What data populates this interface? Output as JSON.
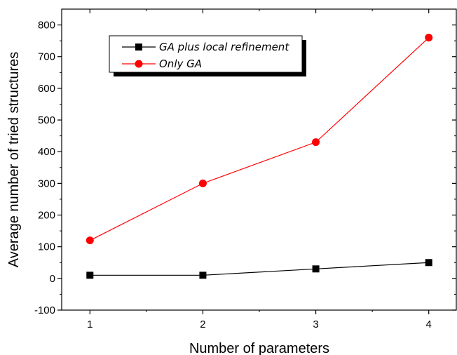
{
  "chart_data": {
    "type": "line",
    "title": "",
    "xlabel": "Number of parameters",
    "ylabel": "Average number of tried structures",
    "x": [
      1,
      2,
      3,
      4
    ],
    "xlim": [
      0.75,
      4.25
    ],
    "ylim": [
      -100,
      850
    ],
    "xticks": [
      1,
      2,
      3,
      4
    ],
    "xtick_labels": [
      "1",
      "2",
      "3",
      "4"
    ],
    "yticks": [
      -100,
      0,
      100,
      200,
      300,
      400,
      500,
      600,
      700,
      800
    ],
    "ytick_labels": [
      "-100",
      "0",
      "100",
      "200",
      "300",
      "400",
      "500",
      "600",
      "700",
      "800"
    ],
    "grid": false,
    "legend_position": "top-left",
    "series": [
      {
        "name": "GA plus local refinement",
        "values": [
          10,
          10,
          30,
          50
        ],
        "color": "#000000",
        "marker": "square"
      },
      {
        "name": "Only GA",
        "values": [
          120,
          300,
          430,
          760
        ],
        "color": "#ff0000",
        "marker": "circle"
      }
    ]
  }
}
